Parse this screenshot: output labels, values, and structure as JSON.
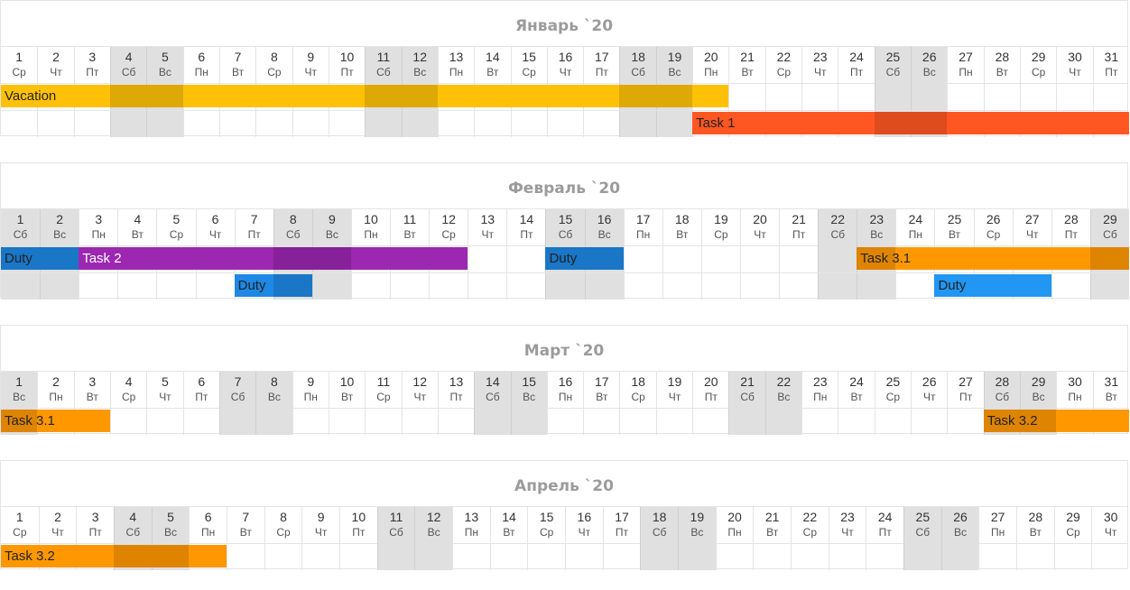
{
  "months": [
    {
      "title": "Январь `20",
      "days": [
        {
          "d": "1",
          "w": "Ср"
        },
        {
          "d": "2",
          "w": "Чт"
        },
        {
          "d": "3",
          "w": "Пт"
        },
        {
          "d": "4",
          "w": "Сб",
          "we": true
        },
        {
          "d": "5",
          "w": "Вс",
          "we": true
        },
        {
          "d": "6",
          "w": "Пн"
        },
        {
          "d": "7",
          "w": "Вт"
        },
        {
          "d": "8",
          "w": "Ср"
        },
        {
          "d": "9",
          "w": "Чт"
        },
        {
          "d": "10",
          "w": "Пт"
        },
        {
          "d": "11",
          "w": "Сб",
          "we": true
        },
        {
          "d": "12",
          "w": "Вс",
          "we": true
        },
        {
          "d": "13",
          "w": "Пн"
        },
        {
          "d": "14",
          "w": "Вт"
        },
        {
          "d": "15",
          "w": "Ср"
        },
        {
          "d": "16",
          "w": "Чт"
        },
        {
          "d": "17",
          "w": "Пт"
        },
        {
          "d": "18",
          "w": "Сб",
          "we": true
        },
        {
          "d": "19",
          "w": "Вс",
          "we": true
        },
        {
          "d": "20",
          "w": "Пн"
        },
        {
          "d": "21",
          "w": "Вт"
        },
        {
          "d": "22",
          "w": "Ср"
        },
        {
          "d": "23",
          "w": "Чт"
        },
        {
          "d": "24",
          "w": "Пт"
        },
        {
          "d": "25",
          "w": "Сб",
          "we": true
        },
        {
          "d": "26",
          "w": "Вс",
          "we": true
        },
        {
          "d": "27",
          "w": "Пн"
        },
        {
          "d": "28",
          "w": "Вт"
        },
        {
          "d": "29",
          "w": "Ср"
        },
        {
          "d": "30",
          "w": "Чт"
        },
        {
          "d": "31",
          "w": "Пт"
        }
      ],
      "rows": 2,
      "bars": [
        {
          "label": "Vacation",
          "row": 0,
          "start": 1,
          "end": 20,
          "color": "#ffc107"
        },
        {
          "label": "Task 1",
          "row": 1,
          "start": 20,
          "end": 31,
          "color": "#ff5722",
          "cut_left": true
        }
      ]
    },
    {
      "title": "Февраль `20",
      "days": [
        {
          "d": "1",
          "w": "Сб",
          "we": true
        },
        {
          "d": "2",
          "w": "Вс",
          "we": true
        },
        {
          "d": "3",
          "w": "Пн"
        },
        {
          "d": "4",
          "w": "Вт"
        },
        {
          "d": "5",
          "w": "Ср"
        },
        {
          "d": "6",
          "w": "Чт"
        },
        {
          "d": "7",
          "w": "Пт"
        },
        {
          "d": "8",
          "w": "Сб",
          "we": true
        },
        {
          "d": "9",
          "w": "Вс",
          "we": true
        },
        {
          "d": "10",
          "w": "Пн"
        },
        {
          "d": "11",
          "w": "Вт"
        },
        {
          "d": "12",
          "w": "Ср"
        },
        {
          "d": "13",
          "w": "Чт"
        },
        {
          "d": "14",
          "w": "Пт"
        },
        {
          "d": "15",
          "w": "Сб",
          "we": true
        },
        {
          "d": "16",
          "w": "Вс",
          "we": true
        },
        {
          "d": "17",
          "w": "Пн"
        },
        {
          "d": "18",
          "w": "Вт"
        },
        {
          "d": "19",
          "w": "Ср"
        },
        {
          "d": "20",
          "w": "Чт"
        },
        {
          "d": "21",
          "w": "Пт"
        },
        {
          "d": "22",
          "w": "Сб",
          "we": true
        },
        {
          "d": "23",
          "w": "Вс",
          "we": true
        },
        {
          "d": "24",
          "w": "Пн"
        },
        {
          "d": "25",
          "w": "Вт"
        },
        {
          "d": "26",
          "w": "Ср"
        },
        {
          "d": "27",
          "w": "Чт"
        },
        {
          "d": "28",
          "w": "Пт"
        },
        {
          "d": "29",
          "w": "Сб",
          "we": true
        }
      ],
      "rows": 2,
      "bars": [
        {
          "label": "Duty",
          "row": 0,
          "start": 1,
          "end": 2,
          "color": "#1e88e5"
        },
        {
          "label": "Task 2",
          "row": 0,
          "start": 3,
          "end": 12,
          "color": "#9c27b0",
          "light": true
        },
        {
          "label": "Duty",
          "row": 0,
          "start": 15,
          "end": 16,
          "color": "#1e88e5"
        },
        {
          "label": "Task 3.1",
          "row": 0,
          "start": 23,
          "end": 29,
          "color": "#ff9800",
          "cut_left": true
        },
        {
          "label": "Duty",
          "row": 1,
          "start": 7,
          "end": 8,
          "color": "#1e88e5"
        },
        {
          "label": "Duty",
          "row": 1,
          "start": 25,
          "end": 27,
          "color": "#2196f3"
        }
      ]
    },
    {
      "title": "Март `20",
      "days": [
        {
          "d": "1",
          "w": "Вс",
          "we": true
        },
        {
          "d": "2",
          "w": "Пн"
        },
        {
          "d": "3",
          "w": "Вт"
        },
        {
          "d": "4",
          "w": "Ср"
        },
        {
          "d": "5",
          "w": "Чт"
        },
        {
          "d": "6",
          "w": "Пт"
        },
        {
          "d": "7",
          "w": "Сб",
          "we": true
        },
        {
          "d": "8",
          "w": "Вс",
          "we": true
        },
        {
          "d": "9",
          "w": "Пн"
        },
        {
          "d": "10",
          "w": "Вт"
        },
        {
          "d": "11",
          "w": "Ср"
        },
        {
          "d": "12",
          "w": "Чт"
        },
        {
          "d": "13",
          "w": "Пт"
        },
        {
          "d": "14",
          "w": "Сб",
          "we": true
        },
        {
          "d": "15",
          "w": "Вс",
          "we": true
        },
        {
          "d": "16",
          "w": "Пн"
        },
        {
          "d": "17",
          "w": "Вт"
        },
        {
          "d": "18",
          "w": "Ср"
        },
        {
          "d": "19",
          "w": "Чт"
        },
        {
          "d": "20",
          "w": "Пт"
        },
        {
          "d": "21",
          "w": "Сб",
          "we": true
        },
        {
          "d": "22",
          "w": "Вс",
          "we": true
        },
        {
          "d": "23",
          "w": "Пн"
        },
        {
          "d": "24",
          "w": "Вт"
        },
        {
          "d": "25",
          "w": "Ср"
        },
        {
          "d": "26",
          "w": "Чт"
        },
        {
          "d": "27",
          "w": "Пт"
        },
        {
          "d": "28",
          "w": "Сб",
          "we": true
        },
        {
          "d": "29",
          "w": "Вс",
          "we": true
        },
        {
          "d": "30",
          "w": "Пн"
        },
        {
          "d": "31",
          "w": "Вт"
        }
      ],
      "rows": 1,
      "bars": [
        {
          "label": "Task 3.1",
          "row": 0,
          "start": 1,
          "end": 3,
          "color": "#ff9800"
        },
        {
          "label": "Task 3.2",
          "row": 0,
          "start": 28,
          "end": 31,
          "color": "#ff9800"
        }
      ]
    },
    {
      "title": "Апрель `20",
      "days": [
        {
          "d": "1",
          "w": "Ср"
        },
        {
          "d": "2",
          "w": "Чт"
        },
        {
          "d": "3",
          "w": "Пт"
        },
        {
          "d": "4",
          "w": "Сб",
          "we": true
        },
        {
          "d": "5",
          "w": "Вс",
          "we": true
        },
        {
          "d": "6",
          "w": "Пн"
        },
        {
          "d": "7",
          "w": "Вт"
        },
        {
          "d": "8",
          "w": "Ср"
        },
        {
          "d": "9",
          "w": "Чт"
        },
        {
          "d": "10",
          "w": "Пт"
        },
        {
          "d": "11",
          "w": "Сб",
          "we": true
        },
        {
          "d": "12",
          "w": "Вс",
          "we": true
        },
        {
          "d": "13",
          "w": "Пн"
        },
        {
          "d": "14",
          "w": "Вт"
        },
        {
          "d": "15",
          "w": "Ср"
        },
        {
          "d": "16",
          "w": "Чт"
        },
        {
          "d": "17",
          "w": "Пт"
        },
        {
          "d": "18",
          "w": "Сб",
          "we": true
        },
        {
          "d": "19",
          "w": "Вс",
          "we": true
        },
        {
          "d": "20",
          "w": "Пн"
        },
        {
          "d": "21",
          "w": "Вт"
        },
        {
          "d": "22",
          "w": "Ср"
        },
        {
          "d": "23",
          "w": "Чт"
        },
        {
          "d": "24",
          "w": "Пт"
        },
        {
          "d": "25",
          "w": "Сб",
          "we": true
        },
        {
          "d": "26",
          "w": "Вс",
          "we": true
        },
        {
          "d": "27",
          "w": "Пн"
        },
        {
          "d": "28",
          "w": "Вт"
        },
        {
          "d": "29",
          "w": "Ср"
        },
        {
          "d": "30",
          "w": "Чт"
        }
      ],
      "rows": 1,
      "bars": [
        {
          "label": "Task 3.2",
          "row": 0,
          "start": 1,
          "end": 6,
          "color": "#ff9800"
        }
      ]
    }
  ]
}
